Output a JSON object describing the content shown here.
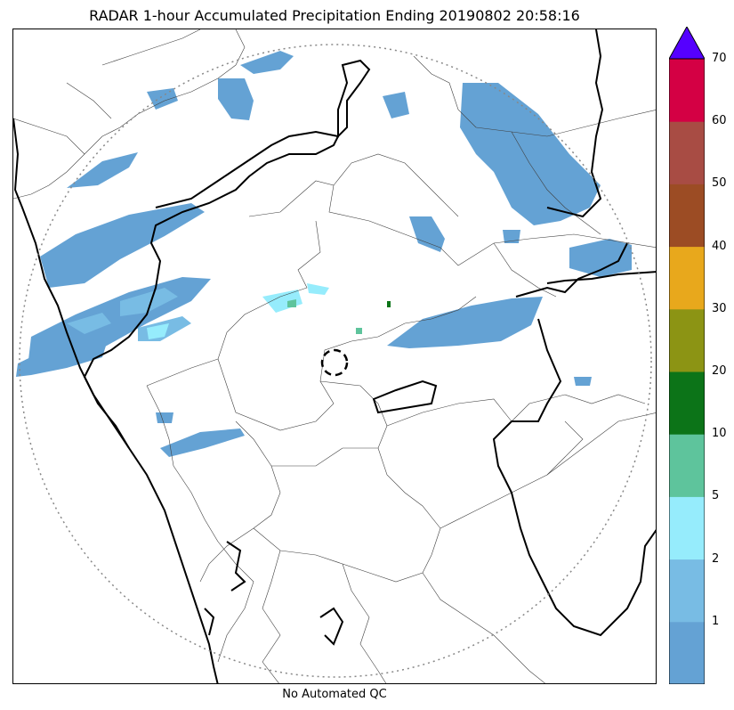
{
  "title": "RADAR 1-hour Accumulated Precipitation Ending 20190802 20:58:16",
  "footer": "No Automated QC",
  "colorbar": {
    "bins": [
      {
        "from": 0,
        "to": 1,
        "color": "#64a2d4"
      },
      {
        "from": 1,
        "to": 2,
        "color": "#78bce4"
      },
      {
        "from": 2,
        "to": 5,
        "color": "#96ecfc"
      },
      {
        "from": 5,
        "to": 10,
        "color": "#5ec49c"
      },
      {
        "from": 10,
        "to": 20,
        "color": "#0c7418"
      },
      {
        "from": 20,
        "to": 30,
        "color": "#8c9414"
      },
      {
        "from": 30,
        "to": 40,
        "color": "#e8a81c"
      },
      {
        "from": 40,
        "to": 50,
        "color": "#9c4c24"
      },
      {
        "from": 50,
        "to": 60,
        "color": "#a84c44"
      },
      {
        "from": 60,
        "to": 70,
        "color": "#d40044"
      }
    ],
    "extend_color": "#5500ff",
    "tick_labels": [
      "1",
      "2",
      "5",
      "10",
      "20",
      "30",
      "40",
      "50",
      "60",
      "70"
    ]
  }
}
